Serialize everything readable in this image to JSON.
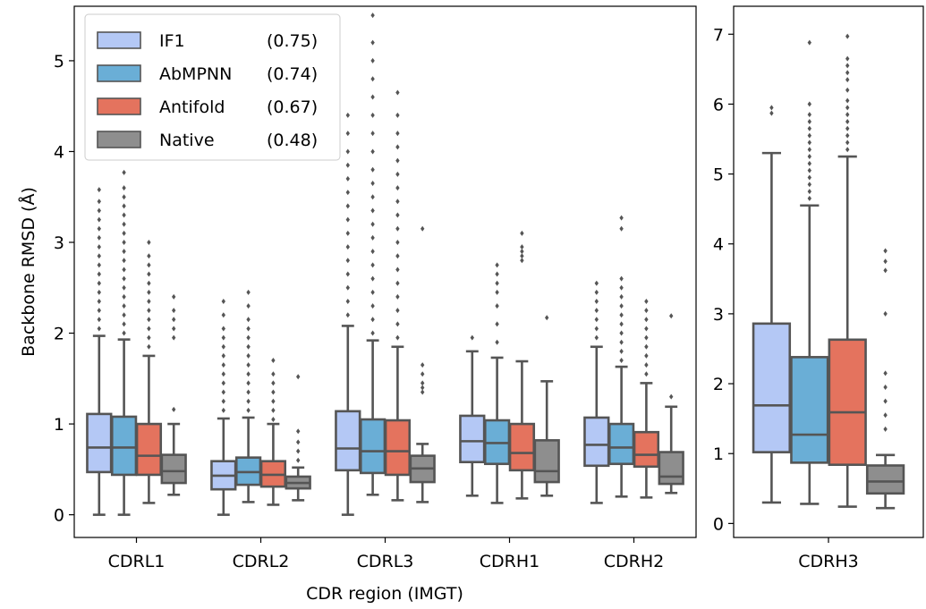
{
  "colors": {
    "IF1": "#B4C8F5",
    "AbMPNN": "#6AAED6",
    "Antifold": "#E4735E",
    "Native": "#8E8E8E",
    "box_line": "#555555",
    "axis": "#000000"
  },
  "chart_data": [
    {
      "type": "box",
      "xlabel": "CDR region (IMGT)",
      "ylabel": "Backbone RMSD (Å)",
      "ylim": [
        -0.25,
        5.6
      ],
      "yticks": [
        "0",
        "1",
        "2",
        "3",
        "4",
        "5"
      ],
      "categories": [
        "CDRL1",
        "CDRL2",
        "CDRL3",
        "CDRH1",
        "CDRH2"
      ],
      "legend": {
        "position": "top-left",
        "entries": [
          {
            "label": "IF1",
            "value": "(0.75)"
          },
          {
            "label": "AbMPNN",
            "value": "(0.74)"
          },
          {
            "label": "Antifold",
            "value": "(0.67)"
          },
          {
            "label": "Native",
            "value": "(0.48)"
          }
        ]
      },
      "series": [
        {
          "name": "IF1",
          "boxes": [
            {
              "whislo": 0.0,
              "q1": 0.47,
              "med": 0.74,
              "q3": 1.11,
              "whishi": 1.97,
              "fliers": [
                2.05,
                2.15,
                2.25,
                2.35,
                2.45,
                2.55,
                2.65,
                2.75,
                2.85,
                2.95,
                3.05,
                3.15,
                3.25,
                3.35,
                3.45,
                3.58
              ]
            },
            {
              "whislo": 0.0,
              "q1": 0.28,
              "med": 0.43,
              "q3": 0.59,
              "whishi": 1.06,
              "fliers": [
                1.15,
                1.25,
                1.35,
                1.45,
                1.55,
                1.65,
                1.75,
                1.85,
                1.95,
                2.05,
                2.2,
                2.35
              ]
            },
            {
              "whislo": 0.0,
              "q1": 0.49,
              "med": 0.73,
              "q3": 1.14,
              "whishi": 2.08,
              "fliers": [
                2.2,
                2.35,
                2.5,
                2.65,
                2.8,
                2.95,
                3.1,
                3.25,
                3.4,
                3.55,
                3.7,
                3.85,
                4.0,
                4.2,
                4.4
              ]
            },
            {
              "whislo": 0.21,
              "q1": 0.58,
              "med": 0.81,
              "q3": 1.09,
              "whishi": 1.8,
              "fliers": [
                1.95
              ]
            },
            {
              "whislo": 0.13,
              "q1": 0.54,
              "med": 0.77,
              "q3": 1.07,
              "whishi": 1.85,
              "fliers": [
                1.95,
                2.05,
                2.15,
                2.25,
                2.35,
                2.45,
                2.55
              ]
            }
          ]
        },
        {
          "name": "AbMPNN",
          "boxes": [
            {
              "whislo": 0.0,
              "q1": 0.44,
              "med": 0.74,
              "q3": 1.08,
              "whishi": 1.93,
              "fliers": [
                2.0,
                2.1,
                2.2,
                2.3,
                2.4,
                2.5,
                2.6,
                2.7,
                2.8,
                2.9,
                3.0,
                3.1,
                3.2,
                3.3,
                3.4,
                3.5,
                3.6,
                3.77
              ]
            },
            {
              "whislo": 0.14,
              "q1": 0.33,
              "med": 0.47,
              "q3": 0.63,
              "whishi": 1.07,
              "fliers": [
                1.15,
                1.25,
                1.35,
                1.45,
                1.55,
                1.65,
                1.75,
                1.85,
                1.95,
                2.05,
                2.15,
                2.3,
                2.45
              ]
            },
            {
              "whislo": 0.22,
              "q1": 0.46,
              "med": 0.7,
              "q3": 1.05,
              "whishi": 1.92,
              "fliers": [
                2.0,
                2.15,
                2.3,
                2.45,
                2.6,
                2.75,
                2.9,
                3.05,
                3.2,
                3.35,
                3.5,
                3.65,
                3.8,
                4.0,
                4.2,
                4.4,
                4.6,
                4.8,
                5.0,
                5.2,
                5.5
              ]
            },
            {
              "whislo": 0.13,
              "q1": 0.56,
              "med": 0.79,
              "q3": 1.04,
              "whishi": 1.73,
              "fliers": [
                1.9,
                2.1,
                2.3,
                2.45,
                2.55,
                2.65,
                2.75
              ]
            },
            {
              "whislo": 0.2,
              "q1": 0.56,
              "med": 0.74,
              "q3": 1.0,
              "whishi": 1.63,
              "fliers": [
                1.7,
                1.8,
                1.9,
                2.0,
                2.1,
                2.2,
                2.3,
                2.4,
                2.5,
                2.6,
                3.15,
                3.27
              ]
            }
          ]
        },
        {
          "name": "Antifold",
          "boxes": [
            {
              "whislo": 0.13,
              "q1": 0.44,
              "med": 0.65,
              "q3": 1.0,
              "whishi": 1.75,
              "fliers": [
                1.85,
                1.95,
                2.05,
                2.15,
                2.25,
                2.35,
                2.45,
                2.55,
                2.65,
                2.75,
                2.85,
                3.0
              ]
            },
            {
              "whislo": 0.11,
              "q1": 0.31,
              "med": 0.44,
              "q3": 0.59,
              "whishi": 1.0,
              "fliers": [
                1.05,
                1.15,
                1.25,
                1.35,
                1.45,
                1.55,
                1.7
              ]
            },
            {
              "whislo": 0.16,
              "q1": 0.44,
              "med": 0.7,
              "q3": 1.04,
              "whishi": 1.85,
              "fliers": [
                1.95,
                2.1,
                2.25,
                2.4,
                2.55,
                2.7,
                2.85,
                3.0,
                3.15,
                3.3,
                3.45,
                3.6,
                3.75,
                3.9,
                4.05,
                4.2,
                4.4,
                4.65
              ]
            },
            {
              "whislo": 0.18,
              "q1": 0.49,
              "med": 0.68,
              "q3": 1.0,
              "whishi": 1.69,
              "fliers": [
                2.8,
                2.85,
                2.9,
                2.95,
                3.1
              ]
            },
            {
              "whislo": 0.19,
              "q1": 0.53,
              "med": 0.66,
              "q3": 0.91,
              "whishi": 1.45,
              "fliers": [
                1.55,
                1.65,
                1.75,
                1.85,
                1.95,
                2.05,
                2.15,
                2.25,
                2.35
              ]
            }
          ]
        },
        {
          "name": "Native",
          "boxes": [
            {
              "whislo": 0.22,
              "q1": 0.35,
              "med": 0.48,
              "q3": 0.66,
              "whishi": 1.0,
              "fliers": [
                1.16,
                1.95,
                2.05,
                2.15,
                2.25,
                2.4
              ]
            },
            {
              "whislo": 0.16,
              "q1": 0.29,
              "med": 0.35,
              "q3": 0.42,
              "whishi": 0.52,
              "fliers": [
                0.6,
                0.7,
                0.8,
                0.92,
                1.52
              ]
            },
            {
              "whislo": 0.14,
              "q1": 0.36,
              "med": 0.51,
              "q3": 0.65,
              "whishi": 0.78,
              "fliers": [
                1.35,
                1.4,
                1.45,
                1.55,
                1.65,
                3.15
              ]
            },
            {
              "whislo": 0.21,
              "q1": 0.36,
              "med": 0.48,
              "q3": 0.82,
              "whishi": 1.47,
              "fliers": [
                2.17
              ]
            },
            {
              "whislo": 0.24,
              "q1": 0.34,
              "med": 0.42,
              "q3": 0.69,
              "whishi": 1.19,
              "fliers": [
                1.3,
                2.19
              ]
            }
          ]
        }
      ]
    },
    {
      "type": "box",
      "xlabel": "",
      "ylabel": "",
      "ylim": [
        -0.2,
        7.4
      ],
      "yticks": [
        "0",
        "1",
        "2",
        "3",
        "4",
        "5",
        "6",
        "7"
      ],
      "categories": [
        "CDRH3"
      ],
      "series": [
        {
          "name": "IF1",
          "boxes": [
            {
              "whislo": 0.3,
              "q1": 1.02,
              "med": 1.69,
              "q3": 2.86,
              "whishi": 5.3,
              "fliers": [
                5.87,
                5.95
              ]
            }
          ]
        },
        {
          "name": "AbMPNN",
          "boxes": [
            {
              "whislo": 0.28,
              "q1": 0.87,
              "med": 1.27,
              "q3": 2.38,
              "whishi": 4.55,
              "fliers": [
                4.65,
                4.75,
                4.85,
                4.95,
                5.05,
                5.15,
                5.25,
                5.35,
                5.45,
                5.55,
                5.65,
                5.75,
                5.85,
                6.0,
                6.88
              ]
            }
          ]
        },
        {
          "name": "Antifold",
          "boxes": [
            {
              "whislo": 0.24,
              "q1": 0.84,
              "med": 1.59,
              "q3": 2.63,
              "whishi": 5.25,
              "fliers": [
                5.35,
                5.45,
                5.55,
                5.65,
                5.75,
                5.85,
                5.95,
                6.05,
                6.2,
                6.35,
                6.45,
                6.55,
                6.65,
                6.97
              ]
            }
          ]
        },
        {
          "name": "Native",
          "boxes": [
            {
              "whislo": 0.22,
              "q1": 0.43,
              "med": 0.6,
              "q3": 0.83,
              "whishi": 0.98,
              "fliers": [
                1.35,
                1.55,
                1.75,
                1.95,
                2.15,
                3.0,
                3.62,
                3.75,
                3.9
              ]
            }
          ]
        }
      ]
    }
  ]
}
